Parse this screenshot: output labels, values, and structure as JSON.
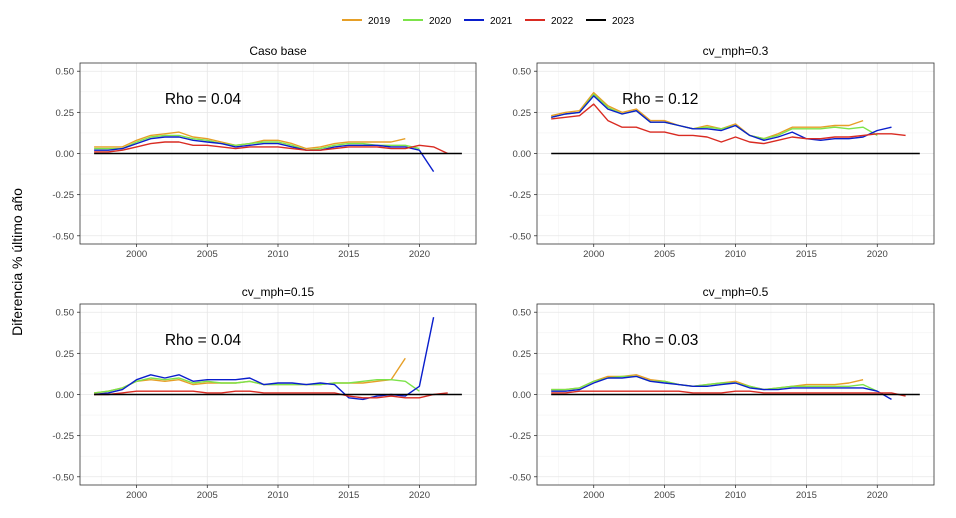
{
  "ylabel": "Diferencia % último año",
  "legend": {
    "placement": "top-center",
    "entries": [
      {
        "label": "2019",
        "color": "#E69F27"
      },
      {
        "label": "2020",
        "color": "#7CE34A"
      },
      {
        "label": "2021",
        "color": "#0A1ECC"
      },
      {
        "label": "2022",
        "color": "#D92B22"
      },
      {
        "label": "2023",
        "color": "#000000"
      }
    ]
  },
  "chart_data": [
    {
      "type": "line",
      "title": "Caso base",
      "annotation": "Rho = 0.04",
      "xlim": [
        1996,
        2024
      ],
      "ylim": [
        -0.55,
        0.55
      ],
      "xticks": [
        2000,
        2005,
        2010,
        2015,
        2020
      ],
      "yticks": [
        0.5,
        0.25,
        0.0,
        -0.25,
        -0.5
      ],
      "ytick_labels": [
        "0.50",
        "0.25",
        "0.00",
        "-0.25",
        "-0.50"
      ],
      "grid": true,
      "series": [
        {
          "name": "2019",
          "x": [
            1997,
            1998,
            1999,
            2000,
            2001,
            2002,
            2003,
            2004,
            2005,
            2006,
            2007,
            2008,
            2009,
            2010,
            2011,
            2012,
            2013,
            2014,
            2015,
            2016,
            2017,
            2018,
            2019
          ],
          "y": [
            0.04,
            0.04,
            0.04,
            0.08,
            0.11,
            0.12,
            0.13,
            0.1,
            0.09,
            0.07,
            0.05,
            0.06,
            0.08,
            0.08,
            0.06,
            0.03,
            0.04,
            0.06,
            0.07,
            0.07,
            0.07,
            0.07,
            0.09
          ]
        },
        {
          "name": "2020",
          "x": [
            1997,
            1998,
            1999,
            2000,
            2001,
            2002,
            2003,
            2004,
            2005,
            2006,
            2007,
            2008,
            2009,
            2010,
            2011,
            2012,
            2013,
            2014,
            2015,
            2016,
            2017,
            2018,
            2019,
            2020
          ],
          "y": [
            0.03,
            0.03,
            0.03,
            0.07,
            0.1,
            0.11,
            0.11,
            0.09,
            0.08,
            0.06,
            0.05,
            0.06,
            0.07,
            0.07,
            0.05,
            0.02,
            0.03,
            0.05,
            0.06,
            0.06,
            0.05,
            0.05,
            0.05,
            0.03
          ]
        },
        {
          "name": "2021",
          "x": [
            1997,
            1998,
            1999,
            2000,
            2001,
            2002,
            2003,
            2004,
            2005,
            2006,
            2007,
            2008,
            2009,
            2010,
            2011,
            2012,
            2013,
            2014,
            2015,
            2016,
            2017,
            2018,
            2019,
            2020,
            2021
          ],
          "y": [
            0.02,
            0.02,
            0.03,
            0.06,
            0.09,
            0.1,
            0.1,
            0.08,
            0.07,
            0.06,
            0.04,
            0.05,
            0.06,
            0.06,
            0.04,
            0.02,
            0.02,
            0.04,
            0.05,
            0.05,
            0.05,
            0.04,
            0.04,
            0.02,
            -0.11
          ]
        },
        {
          "name": "2022",
          "x": [
            1997,
            1998,
            1999,
            2000,
            2001,
            2002,
            2003,
            2004,
            2005,
            2006,
            2007,
            2008,
            2009,
            2010,
            2011,
            2012,
            2013,
            2014,
            2015,
            2016,
            2017,
            2018,
            2019,
            2020,
            2021,
            2022
          ],
          "y": [
            0.01,
            0.01,
            0.02,
            0.04,
            0.06,
            0.07,
            0.07,
            0.05,
            0.05,
            0.04,
            0.03,
            0.04,
            0.04,
            0.04,
            0.03,
            0.02,
            0.02,
            0.03,
            0.04,
            0.04,
            0.04,
            0.03,
            0.03,
            0.05,
            0.04,
            0.0
          ]
        },
        {
          "name": "2023",
          "x": [
            1997,
            2023
          ],
          "y": [
            0.0,
            0.0
          ]
        }
      ]
    },
    {
      "type": "line",
      "title": "cv_mph=0.3",
      "annotation": "Rho = 0.12",
      "xlim": [
        1996,
        2024
      ],
      "ylim": [
        -0.55,
        0.55
      ],
      "xticks": [
        2000,
        2005,
        2010,
        2015,
        2020
      ],
      "yticks": [
        0.5,
        0.25,
        0.0,
        -0.25,
        -0.5
      ],
      "ytick_labels": [
        "0.50",
        "0.25",
        "0.00",
        "-0.25",
        "-0.50"
      ],
      "grid": true,
      "series": [
        {
          "name": "2019",
          "x": [
            1997,
            1998,
            1999,
            2000,
            2001,
            2002,
            2003,
            2004,
            2005,
            2006,
            2007,
            2008,
            2009,
            2010,
            2011,
            2012,
            2013,
            2014,
            2015,
            2016,
            2017,
            2018,
            2019
          ],
          "y": [
            0.23,
            0.25,
            0.26,
            0.37,
            0.29,
            0.25,
            0.27,
            0.2,
            0.2,
            0.17,
            0.15,
            0.17,
            0.15,
            0.18,
            0.11,
            0.09,
            0.12,
            0.16,
            0.16,
            0.16,
            0.17,
            0.17,
            0.2
          ]
        },
        {
          "name": "2020",
          "x": [
            1997,
            1998,
            1999,
            2000,
            2001,
            2002,
            2003,
            2004,
            2005,
            2006,
            2007,
            2008,
            2009,
            2010,
            2011,
            2012,
            2013,
            2014,
            2015,
            2016,
            2017,
            2018,
            2019,
            2020
          ],
          "y": [
            0.22,
            0.24,
            0.25,
            0.36,
            0.28,
            0.24,
            0.26,
            0.19,
            0.19,
            0.17,
            0.15,
            0.16,
            0.15,
            0.17,
            0.11,
            0.09,
            0.11,
            0.15,
            0.15,
            0.15,
            0.16,
            0.15,
            0.16,
            0.11
          ]
        },
        {
          "name": "2021",
          "x": [
            1997,
            1998,
            1999,
            2000,
            2001,
            2002,
            2003,
            2004,
            2005,
            2006,
            2007,
            2008,
            2009,
            2010,
            2011,
            2012,
            2013,
            2014,
            2015,
            2016,
            2017,
            2018,
            2019,
            2020,
            2021
          ],
          "y": [
            0.22,
            0.24,
            0.25,
            0.35,
            0.27,
            0.24,
            0.26,
            0.19,
            0.19,
            0.17,
            0.15,
            0.15,
            0.14,
            0.17,
            0.11,
            0.08,
            0.1,
            0.13,
            0.09,
            0.08,
            0.09,
            0.09,
            0.1,
            0.14,
            0.16
          ]
        },
        {
          "name": "2022",
          "x": [
            1997,
            1998,
            1999,
            2000,
            2001,
            2002,
            2003,
            2004,
            2005,
            2006,
            2007,
            2008,
            2009,
            2010,
            2011,
            2012,
            2013,
            2014,
            2015,
            2016,
            2017,
            2018,
            2019,
            2020,
            2021,
            2022
          ],
          "y": [
            0.21,
            0.22,
            0.23,
            0.3,
            0.2,
            0.16,
            0.16,
            0.13,
            0.13,
            0.11,
            0.11,
            0.1,
            0.07,
            0.1,
            0.07,
            0.06,
            0.08,
            0.1,
            0.09,
            0.09,
            0.1,
            0.1,
            0.11,
            0.12,
            0.12,
            0.11
          ]
        },
        {
          "name": "2023",
          "x": [
            1997,
            2023
          ],
          "y": [
            0.0,
            0.0
          ]
        }
      ]
    },
    {
      "type": "line",
      "title": "cv_mph=0.15",
      "annotation": "Rho = 0.04",
      "xlim": [
        1996,
        2024
      ],
      "ylim": [
        -0.55,
        0.55
      ],
      "xticks": [
        2000,
        2005,
        2010,
        2015,
        2020
      ],
      "yticks": [
        0.5,
        0.25,
        0.0,
        -0.25,
        -0.5
      ],
      "ytick_labels": [
        "0.50",
        "0.25",
        "0.00",
        "-0.25",
        "-0.50"
      ],
      "grid": true,
      "series": [
        {
          "name": "2019",
          "x": [
            1997,
            1998,
            1999,
            2000,
            2001,
            2002,
            2003,
            2004,
            2005,
            2006,
            2007,
            2008,
            2009,
            2010,
            2011,
            2012,
            2013,
            2014,
            2015,
            2016,
            2017,
            2018,
            2019
          ],
          "y": [
            0.01,
            0.02,
            0.04,
            0.08,
            0.09,
            0.08,
            0.09,
            0.06,
            0.07,
            0.07,
            0.07,
            0.08,
            0.06,
            0.06,
            0.06,
            0.06,
            0.06,
            0.07,
            0.07,
            0.07,
            0.08,
            0.09,
            0.22
          ]
        },
        {
          "name": "2020",
          "x": [
            1997,
            1998,
            1999,
            2000,
            2001,
            2002,
            2003,
            2004,
            2005,
            2006,
            2007,
            2008,
            2009,
            2010,
            2011,
            2012,
            2013,
            2014,
            2015,
            2016,
            2017,
            2018,
            2019,
            2020
          ],
          "y": [
            0.01,
            0.02,
            0.04,
            0.08,
            0.1,
            0.09,
            0.1,
            0.07,
            0.08,
            0.07,
            0.07,
            0.08,
            0.06,
            0.06,
            0.06,
            0.06,
            0.06,
            0.07,
            0.07,
            0.08,
            0.09,
            0.09,
            0.08,
            0.02
          ]
        },
        {
          "name": "2021",
          "x": [
            1997,
            1998,
            1999,
            2000,
            2001,
            2002,
            2003,
            2004,
            2005,
            2006,
            2007,
            2008,
            2009,
            2010,
            2011,
            2012,
            2013,
            2014,
            2015,
            2016,
            2017,
            2018,
            2019,
            2020,
            2021
          ],
          "y": [
            0.0,
            0.01,
            0.03,
            0.09,
            0.12,
            0.1,
            0.12,
            0.08,
            0.09,
            0.09,
            0.09,
            0.1,
            0.06,
            0.07,
            0.07,
            0.06,
            0.07,
            0.06,
            -0.02,
            -0.03,
            -0.01,
            0.0,
            -0.01,
            0.05,
            0.47
          ]
        },
        {
          "name": "2022",
          "x": [
            1997,
            1998,
            1999,
            2000,
            2001,
            2002,
            2003,
            2004,
            2005,
            2006,
            2007,
            2008,
            2009,
            2010,
            2011,
            2012,
            2013,
            2014,
            2015,
            2016,
            2017,
            2018,
            2019,
            2020,
            2021,
            2022
          ],
          "y": [
            0.0,
            0.0,
            0.01,
            0.02,
            0.02,
            0.02,
            0.02,
            0.02,
            0.01,
            0.01,
            0.02,
            0.02,
            0.01,
            0.01,
            0.01,
            0.01,
            0.01,
            0.01,
            -0.01,
            -0.02,
            -0.02,
            -0.01,
            -0.02,
            -0.02,
            0.0,
            0.01
          ]
        },
        {
          "name": "2023",
          "x": [
            1997,
            2023
          ],
          "y": [
            0.0,
            0.0
          ]
        }
      ]
    },
    {
      "type": "line",
      "title": "cv_mph=0.5",
      "annotation": "Rho = 0.03",
      "xlim": [
        1996,
        2024
      ],
      "ylim": [
        -0.55,
        0.55
      ],
      "xticks": [
        2000,
        2005,
        2010,
        2015,
        2020
      ],
      "yticks": [
        0.5,
        0.25,
        0.0,
        -0.25,
        -0.5
      ],
      "ytick_labels": [
        "0.50",
        "0.25",
        "0.00",
        "-0.25",
        "-0.50"
      ],
      "grid": true,
      "series": [
        {
          "name": "2019",
          "x": [
            1997,
            1998,
            1999,
            2000,
            2001,
            2002,
            2003,
            2004,
            2005,
            2006,
            2007,
            2008,
            2009,
            2010,
            2011,
            2012,
            2013,
            2014,
            2015,
            2016,
            2017,
            2018,
            2019
          ],
          "y": [
            0.03,
            0.03,
            0.04,
            0.08,
            0.11,
            0.11,
            0.12,
            0.09,
            0.08,
            0.06,
            0.05,
            0.06,
            0.07,
            0.08,
            0.05,
            0.03,
            0.04,
            0.05,
            0.06,
            0.06,
            0.06,
            0.07,
            0.09
          ]
        },
        {
          "name": "2020",
          "x": [
            1997,
            1998,
            1999,
            2000,
            2001,
            2002,
            2003,
            2004,
            2005,
            2006,
            2007,
            2008,
            2009,
            2010,
            2011,
            2012,
            2013,
            2014,
            2015,
            2016,
            2017,
            2018,
            2019,
            2020
          ],
          "y": [
            0.03,
            0.03,
            0.04,
            0.08,
            0.1,
            0.11,
            0.11,
            0.08,
            0.08,
            0.06,
            0.05,
            0.06,
            0.07,
            0.07,
            0.05,
            0.03,
            0.04,
            0.05,
            0.05,
            0.05,
            0.05,
            0.05,
            0.06,
            0.02
          ]
        },
        {
          "name": "2021",
          "x": [
            1997,
            1998,
            1999,
            2000,
            2001,
            2002,
            2003,
            2004,
            2005,
            2006,
            2007,
            2008,
            2009,
            2010,
            2011,
            2012,
            2013,
            2014,
            2015,
            2016,
            2017,
            2018,
            2019,
            2020,
            2021
          ],
          "y": [
            0.02,
            0.02,
            0.03,
            0.07,
            0.1,
            0.1,
            0.11,
            0.08,
            0.07,
            0.06,
            0.05,
            0.05,
            0.06,
            0.07,
            0.04,
            0.03,
            0.03,
            0.04,
            0.04,
            0.04,
            0.04,
            0.04,
            0.04,
            0.02,
            -0.03
          ]
        },
        {
          "name": "2022",
          "x": [
            1997,
            1998,
            1999,
            2000,
            2001,
            2002,
            2003,
            2004,
            2005,
            2006,
            2007,
            2008,
            2009,
            2010,
            2011,
            2012,
            2013,
            2014,
            2015,
            2016,
            2017,
            2018,
            2019,
            2020,
            2021,
            2022
          ],
          "y": [
            0.01,
            0.01,
            0.02,
            0.02,
            0.02,
            0.02,
            0.02,
            0.02,
            0.02,
            0.02,
            0.01,
            0.01,
            0.01,
            0.02,
            0.02,
            0.01,
            0.01,
            0.01,
            0.01,
            0.01,
            0.01,
            0.01,
            0.01,
            0.01,
            0.01,
            -0.01
          ]
        },
        {
          "name": "2023",
          "x": [
            1997,
            2023
          ],
          "y": [
            0.0,
            0.0
          ]
        }
      ]
    }
  ]
}
